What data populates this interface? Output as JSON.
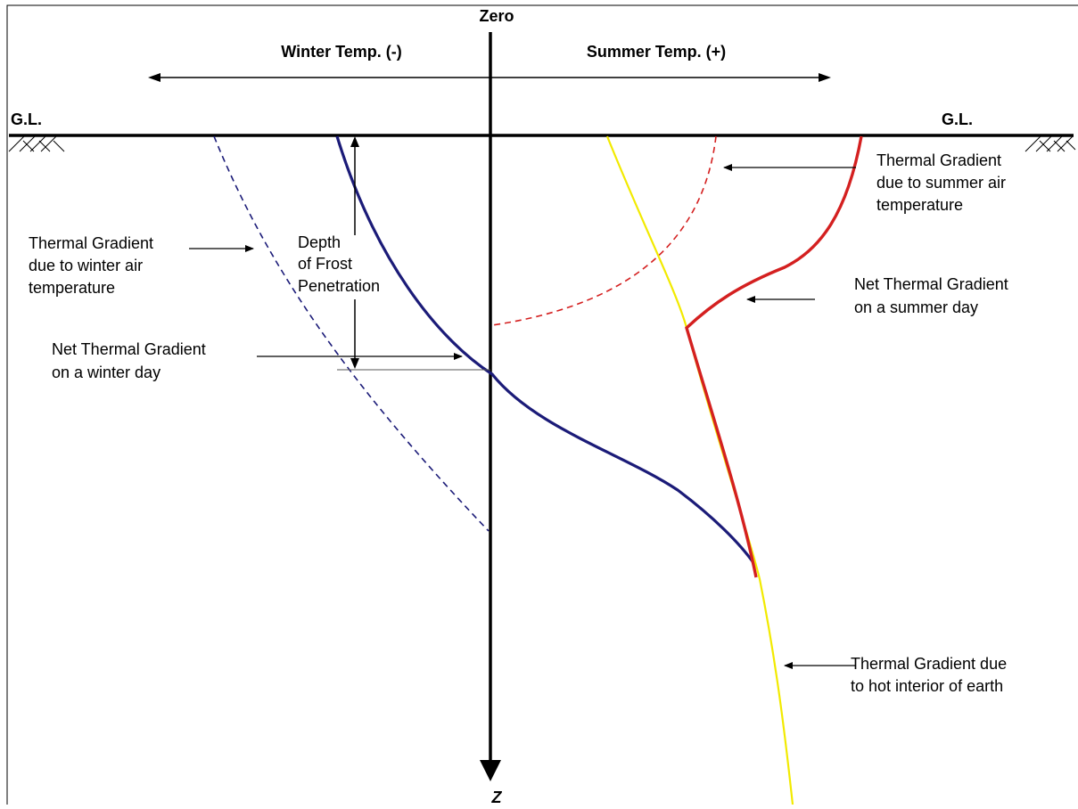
{
  "diagram": {
    "top_label": "Zero",
    "bottom_label": "Z",
    "winter_header": "Winter Temp. (-)",
    "summer_header": "Summer Temp. (+)",
    "ground_level_left": "G.L.",
    "ground_level_right": "G.L.",
    "labels": {
      "depth_frost": [
        "Depth",
        "of Frost",
        "Penetration"
      ],
      "winter_air": [
        "Thermal Gradient",
        "due to winter air",
        "temperature"
      ],
      "net_winter": [
        "Net Thermal Gradient",
        "on a winter day"
      ],
      "summer_air": [
        "Thermal Gradient",
        "due to summer air",
        "temperature"
      ],
      "net_summer": [
        "Net Thermal Gradient",
        "on a summer day"
      ],
      "earth_interior": [
        "Thermal Gradient due",
        "to hot interior of earth"
      ]
    },
    "colors": {
      "axis": "#000000",
      "winter_curve": "#1b1b78",
      "summer_dashed": "#d42020",
      "summer_net": "#d42020",
      "earth_gradient": "#f2ea00",
      "frame": "#000000"
    }
  }
}
